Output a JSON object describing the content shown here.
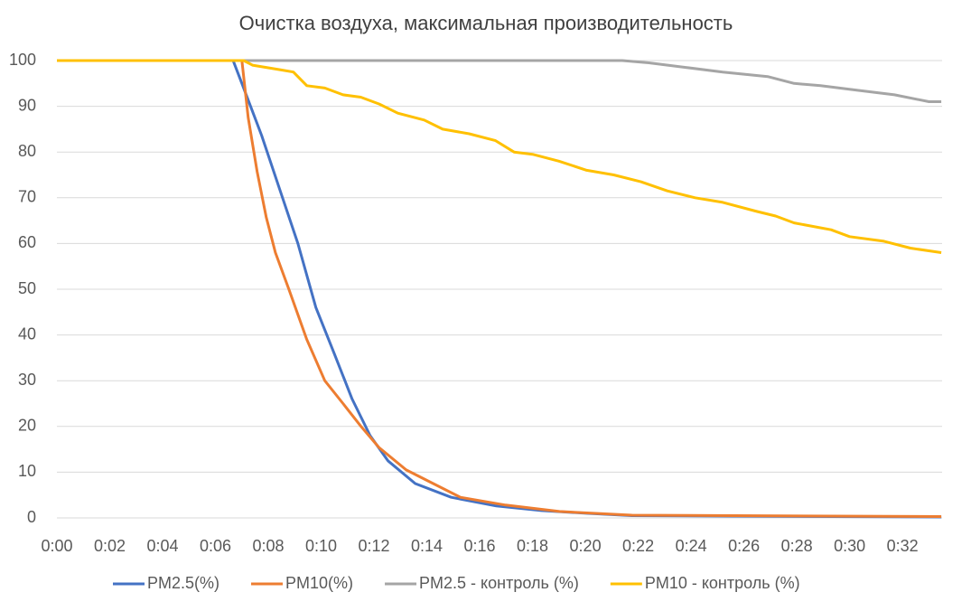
{
  "chart_data": {
    "type": "line",
    "title": "Очистка воздуха, максимальная производительность",
    "xlim": [
      0,
      33.5
    ],
    "xticks": [
      {
        "value": 0,
        "label": "0:00"
      },
      {
        "value": 2,
        "label": "0:02"
      },
      {
        "value": 4,
        "label": "0:04"
      },
      {
        "value": 6,
        "label": "0:06"
      },
      {
        "value": 8,
        "label": "0:08"
      },
      {
        "value": 10,
        "label": "0:10"
      },
      {
        "value": 12,
        "label": "0:12"
      },
      {
        "value": 14,
        "label": "0:14"
      },
      {
        "value": 16,
        "label": "0:16"
      },
      {
        "value": 18,
        "label": "0:18"
      },
      {
        "value": 20,
        "label": "0:20"
      },
      {
        "value": 22,
        "label": "0:22"
      },
      {
        "value": 24,
        "label": "0:24"
      },
      {
        "value": 26,
        "label": "0:26"
      },
      {
        "value": 28,
        "label": "0:28"
      },
      {
        "value": 30,
        "label": "0:30"
      },
      {
        "value": 32,
        "label": "0:32"
      }
    ],
    "ylim": [
      0,
      100
    ],
    "yticks": [
      0,
      10,
      20,
      30,
      40,
      50,
      60,
      70,
      80,
      90,
      100
    ],
    "grid": true,
    "legend": "bottom",
    "series": [
      {
        "name": "PM2.5(%)",
        "color": "#4472c4",
        "x": [
          0,
          6.67,
          7.0,
          7.75,
          8.44,
          9.12,
          9.8,
          10.49,
          11.17,
          11.85,
          12.53,
          13.56,
          14.92,
          16.63,
          18.34,
          20.05,
          21.76,
          33.47
        ],
        "values": [
          100,
          100,
          95,
          83.6,
          71.7,
          60,
          46,
          36,
          26,
          18,
          12.5,
          7.5,
          4.5,
          2.6,
          1.6,
          1,
          0.5,
          0.2
        ]
      },
      {
        "name": "PM10(%)",
        "color": "#ed7d31",
        "x": [
          0,
          7.0,
          7.24,
          7.58,
          7.92,
          8.27,
          8.78,
          9.46,
          10.14,
          10.83,
          11.51,
          12.19,
          13.22,
          14.24,
          15.27,
          16.98,
          19.02,
          21.76,
          33.47
        ],
        "values": [
          100,
          100,
          87.5,
          75.7,
          65.8,
          58,
          50,
          39,
          30,
          25,
          20,
          15.4,
          10.5,
          7.5,
          4.5,
          2.8,
          1.4,
          0.6,
          0.3
        ]
      },
      {
        "name": "PM2.5 - контроль (%)",
        "color": "#a5a5a5",
        "x": [
          0,
          21.4,
          22.4,
          23.8,
          25.2,
          26.9,
          27.9,
          28.9,
          30.3,
          31.7,
          33.0,
          33.47
        ],
        "values": [
          100,
          100,
          99.5,
          98.5,
          97.5,
          96.5,
          95,
          94.5,
          93.5,
          92.5,
          91,
          91
        ]
      },
      {
        "name": "PM10 - контроль (%)",
        "color": "#ffc000",
        "x": [
          0,
          7.07,
          7.4,
          8.44,
          8.95,
          9.46,
          10.14,
          10.83,
          11.5,
          12.2,
          12.9,
          13.9,
          14.6,
          15.6,
          16.6,
          17.3,
          18.0,
          19.0,
          20.05,
          21.07,
          22.1,
          23.1,
          24.15,
          25.2,
          26.5,
          27.2,
          27.9,
          29.3,
          30.0,
          31.3,
          32.3,
          33.47
        ],
        "values": [
          100,
          100,
          99,
          98,
          97.5,
          94.5,
          94,
          92.5,
          92,
          90.5,
          88.5,
          87,
          85,
          84,
          82.5,
          80,
          79.5,
          78,
          76,
          75,
          73.5,
          71.5,
          70,
          69,
          67,
          66,
          64.5,
          63,
          61.5,
          60.5,
          59,
          58
        ]
      }
    ]
  }
}
